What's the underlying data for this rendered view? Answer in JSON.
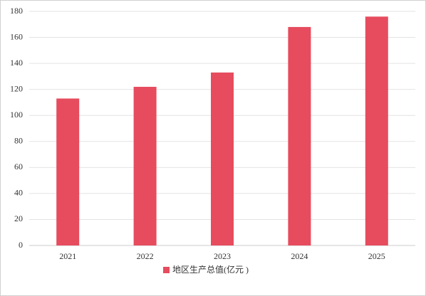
{
  "chart_data": {
    "type": "bar",
    "categories": [
      "2021",
      "2022",
      "2023",
      "2024",
      "2025"
    ],
    "series": [
      {
        "name": "地区生产总值(亿元 )",
        "color": "#e64c5e",
        "values": [
          113,
          122,
          133,
          168,
          176
        ]
      }
    ],
    "ylim": [
      0,
      180
    ],
    "yticks": [
      0,
      20,
      40,
      60,
      80,
      100,
      120,
      140,
      160,
      180
    ],
    "grid": true,
    "legend": "bottom"
  }
}
